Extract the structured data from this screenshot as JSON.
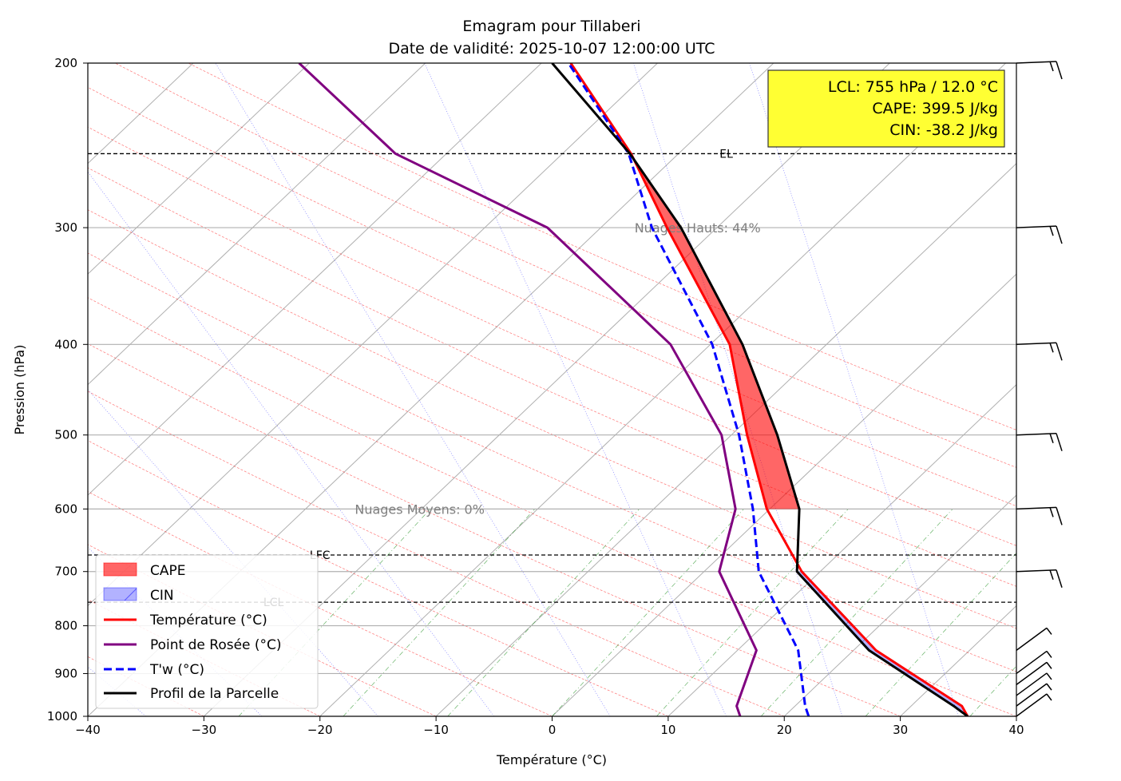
{
  "chart_data": {
    "type": "line",
    "title": "Emagram pour Tillaberi",
    "subtitle": "Date de validité: 2025-10-07 12:00:00 UTC",
    "xlabel": "Température (°C)",
    "ylabel": "Pression (hPa)",
    "xlim": [
      -40,
      40
    ],
    "ylim": [
      1000,
      200
    ],
    "y_scale": "log",
    "x_ticks": [
      -40,
      -30,
      -20,
      -10,
      0,
      10,
      20,
      30,
      40
    ],
    "x_tick_labels": [
      "−40",
      "−30",
      "−20",
      "−10",
      "0",
      "10",
      "20",
      "30",
      "40"
    ],
    "y_ticks": [
      1000,
      900,
      800,
      700,
      600,
      500,
      400,
      300,
      200
    ],
    "y_tick_labels": [
      "1000",
      "900",
      "800",
      "700",
      "600",
      "500",
      "400",
      "300",
      "200"
    ],
    "pressure": [
      1000,
      975,
      850,
      700,
      600,
      500,
      400,
      300,
      250,
      200
    ],
    "series": [
      {
        "name": "Température (°C)",
        "color": "#ff0000",
        "style": "solid",
        "values": [
          35.8,
          35.3,
          27.9,
          21.5,
          18.5,
          16.8,
          15.3,
          9.9,
          6.8,
          1.6
        ]
      },
      {
        "name": "Point de Rosée (°C)",
        "color": "#800080",
        "style": "solid",
        "values": [
          16.2,
          15.9,
          17.6,
          14.4,
          15.8,
          14.6,
          10.2,
          -0.4,
          -13.5,
          -21.8
        ]
      },
      {
        "name": "T'w (°C)",
        "color": "#0000ff",
        "style": "dashed",
        "values": [
          22.1,
          21.8,
          21.2,
          17.8,
          17.3,
          16.1,
          13.8,
          8.6,
          6.6,
          1.4
        ]
      },
      {
        "name": "Profil de la Parcelle",
        "color": "#000000",
        "style": "solid",
        "values": [
          35.8,
          34.6,
          27.3,
          21.1,
          21.3,
          19.4,
          16.4,
          11.1,
          6.7,
          0.0
        ]
      }
    ],
    "levels": [
      {
        "name": "EL",
        "pressure": 250
      },
      {
        "name": "LFC",
        "pressure": 672
      },
      {
        "name": "LCL",
        "pressure": 755
      }
    ],
    "cloud_annotations": [
      {
        "text": "Nuages Hauts: 44%",
        "temperature": 7.1,
        "pressure": 300
      },
      {
        "text": "Nuages Moyens: 0%",
        "temperature": -17.0,
        "pressure": 600
      }
    ],
    "info_box": [
      "LCL: 755 hPa / 12.0 °C",
      "CAPE: 399.5 J/kg",
      "CIN: -38.2 J/kg"
    ],
    "legend": [
      {
        "label": "CAPE",
        "kind": "patch",
        "color": "#ff0000"
      },
      {
        "label": "CIN",
        "kind": "patch",
        "color": "#0000ff"
      },
      {
        "label": "Température (°C)",
        "kind": "line",
        "color": "#ff0000"
      },
      {
        "label": "Point de Rosée (°C)",
        "kind": "line",
        "color": "#800080"
      },
      {
        "label": "T'w (°C)",
        "kind": "dashed",
        "color": "#0000ff"
      },
      {
        "label": "Profil de la Parcelle",
        "kind": "line",
        "color": "#000000"
      }
    ],
    "legend_position": "lower-left",
    "wind_barbs": [
      {
        "pressure": 200,
        "speed_kt": 15
      },
      {
        "pressure": 300,
        "speed_kt": 15
      },
      {
        "pressure": 400,
        "speed_kt": 15
      },
      {
        "pressure": 500,
        "speed_kt": 15
      },
      {
        "pressure": 600,
        "speed_kt": 15
      },
      {
        "pressure": 700,
        "speed_kt": 15
      },
      {
        "pressure": 850,
        "speed_kt": 10
      },
      {
        "pressure": 900,
        "speed_kt": 10
      },
      {
        "pressure": 925,
        "speed_kt": 10
      },
      {
        "pressure": 950,
        "speed_kt": 10
      },
      {
        "pressure": 975,
        "speed_kt": 10
      },
      {
        "pressure": 1000,
        "speed_kt": 10
      }
    ]
  }
}
